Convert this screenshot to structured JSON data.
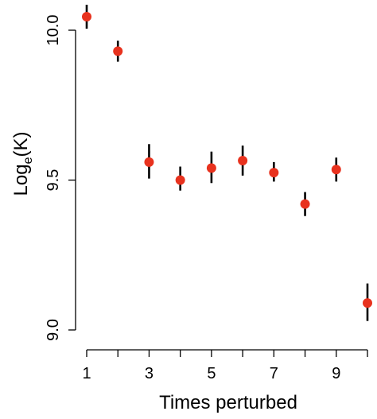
{
  "chart_data": {
    "type": "scatter",
    "xlabel": "Times perturbed",
    "ylabel_main": "Log",
    "ylabel_sub": "e",
    "ylabel_tail": "(K)",
    "xlim": [
      1,
      10
    ],
    "ylim": [
      9.0,
      10.05
    ],
    "x_ticks": [
      1,
      2,
      3,
      4,
      5,
      6,
      7,
      8,
      9,
      10
    ],
    "x_tick_labels": [
      "1",
      "3",
      "5",
      "7",
      "9"
    ],
    "x_tick_label_values": [
      1,
      3,
      5,
      7,
      9
    ],
    "y_ticks": [
      9.0,
      9.5,
      10.0
    ],
    "y_tick_labels": [
      "9.0",
      "9.5",
      "10.0"
    ],
    "grid": false,
    "point_color": "#e8321e",
    "errbar_color": "#000000",
    "points": [
      {
        "x": 1,
        "y": 10.045,
        "low": 10.005,
        "high": 10.085
      },
      {
        "x": 2,
        "y": 9.93,
        "low": 9.895,
        "high": 9.965
      },
      {
        "x": 3,
        "y": 9.56,
        "low": 9.505,
        "high": 9.62
      },
      {
        "x": 4,
        "y": 9.5,
        "low": 9.465,
        "high": 9.545
      },
      {
        "x": 5,
        "y": 9.54,
        "low": 9.49,
        "high": 9.595
      },
      {
        "x": 6,
        "y": 9.565,
        "low": 9.515,
        "high": 9.615
      },
      {
        "x": 7,
        "y": 9.525,
        "low": 9.495,
        "high": 9.56
      },
      {
        "x": 8,
        "y": 9.42,
        "low": 9.38,
        "high": 9.46
      },
      {
        "x": 9,
        "y": 9.535,
        "low": 9.495,
        "high": 9.575
      },
      {
        "x": 10,
        "y": 9.09,
        "low": 9.03,
        "high": 9.155
      }
    ]
  }
}
